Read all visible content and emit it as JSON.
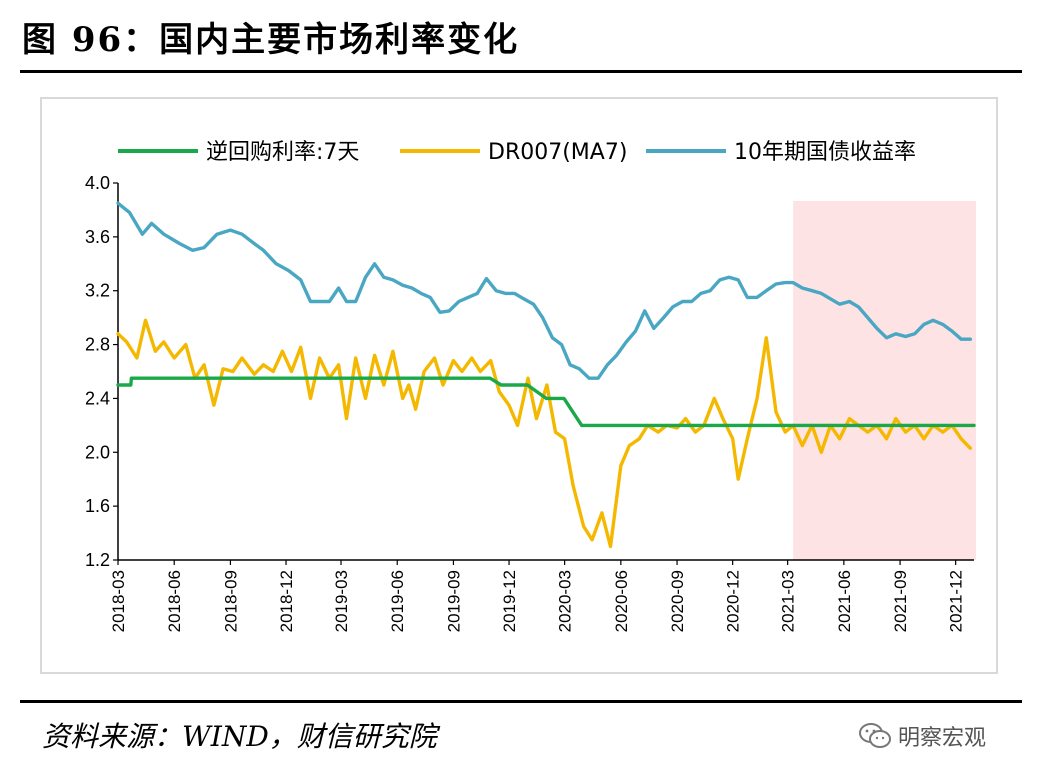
{
  "figure": {
    "title": "图 96：国内主要市场利率变化",
    "source": "资料来源：WIND，财信研究院",
    "watermark": "明察宏观",
    "watermark_icon": "wechat-icon"
  },
  "chart_data": {
    "type": "line",
    "title": "",
    "xlabel": "",
    "ylabel": "",
    "ylim": [
      1.2,
      4.0
    ],
    "yticks": [
      "4.0",
      "3.6",
      "3.2",
      "2.8",
      "2.4",
      "2.0",
      "1.6",
      "1.2"
    ],
    "xticks": [
      "2018-03",
      "2018-06",
      "2018-09",
      "2018-12",
      "2019-03",
      "2019-06",
      "2019-09",
      "2019-12",
      "2020-03",
      "2020-06",
      "2020-09",
      "2020-12",
      "2021-03",
      "2021-06",
      "2021-09",
      "2021-12"
    ],
    "xrange": [
      "2018-03-01",
      "2021-12-31"
    ],
    "legend_position": "top",
    "highlight": {
      "x_start": "2021-03-10",
      "x_end": "2021-12-31",
      "color": "#fde3e3"
    },
    "series": [
      {
        "name": "逆回购利率:7天",
        "color": "#1aa84a",
        "points": [
          [
            "2018-03-01",
            2.5
          ],
          [
            "2018-03-22",
            2.5
          ],
          [
            "2018-03-23",
            2.55
          ],
          [
            "2019-10-31",
            2.55
          ],
          [
            "2019-11-18",
            2.5
          ],
          [
            "2019-12-31",
            2.5
          ],
          [
            "2020-01-31",
            2.4
          ],
          [
            "2020-02-29",
            2.4
          ],
          [
            "2020-03-29",
            2.2
          ],
          [
            "2021-12-31",
            2.2
          ]
        ]
      },
      {
        "name": "DR007(MA7)",
        "color": "#f5b800",
        "points": [
          [
            "2018-03-01",
            2.88
          ],
          [
            "2018-03-15",
            2.82
          ],
          [
            "2018-04-01",
            2.7
          ],
          [
            "2018-04-15",
            2.98
          ],
          [
            "2018-05-01",
            2.75
          ],
          [
            "2018-05-15",
            2.82
          ],
          [
            "2018-06-01",
            2.7
          ],
          [
            "2018-06-20",
            2.8
          ],
          [
            "2018-07-05",
            2.55
          ],
          [
            "2018-07-20",
            2.65
          ],
          [
            "2018-08-05",
            2.35
          ],
          [
            "2018-08-20",
            2.62
          ],
          [
            "2018-09-05",
            2.6
          ],
          [
            "2018-09-20",
            2.7
          ],
          [
            "2018-10-10",
            2.58
          ],
          [
            "2018-10-25",
            2.65
          ],
          [
            "2018-11-10",
            2.6
          ],
          [
            "2018-11-25",
            2.75
          ],
          [
            "2018-12-10",
            2.6
          ],
          [
            "2018-12-25",
            2.78
          ],
          [
            "2019-01-10",
            2.4
          ],
          [
            "2019-01-25",
            2.7
          ],
          [
            "2019-02-10",
            2.55
          ],
          [
            "2019-02-25",
            2.65
          ],
          [
            "2019-03-10",
            2.25
          ],
          [
            "2019-03-25",
            2.7
          ],
          [
            "2019-04-10",
            2.4
          ],
          [
            "2019-04-25",
            2.72
          ],
          [
            "2019-05-10",
            2.5
          ],
          [
            "2019-05-25",
            2.75
          ],
          [
            "2019-06-10",
            2.4
          ],
          [
            "2019-06-20",
            2.5
          ],
          [
            "2019-07-01",
            2.32
          ],
          [
            "2019-07-15",
            2.6
          ],
          [
            "2019-08-01",
            2.7
          ],
          [
            "2019-08-15",
            2.5
          ],
          [
            "2019-09-01",
            2.68
          ],
          [
            "2019-09-15",
            2.6
          ],
          [
            "2019-10-01",
            2.7
          ],
          [
            "2019-10-15",
            2.6
          ],
          [
            "2019-11-01",
            2.68
          ],
          [
            "2019-11-15",
            2.45
          ],
          [
            "2019-12-01",
            2.35
          ],
          [
            "2019-12-15",
            2.2
          ],
          [
            "2020-01-01",
            2.55
          ],
          [
            "2020-01-15",
            2.25
          ],
          [
            "2020-02-01",
            2.5
          ],
          [
            "2020-02-15",
            2.15
          ],
          [
            "2020-03-01",
            2.1
          ],
          [
            "2020-03-15",
            1.75
          ],
          [
            "2020-04-01",
            1.45
          ],
          [
            "2020-04-15",
            1.35
          ],
          [
            "2020-05-01",
            1.55
          ],
          [
            "2020-05-15",
            1.3
          ],
          [
            "2020-06-01",
            1.9
          ],
          [
            "2020-06-15",
            2.05
          ],
          [
            "2020-07-01",
            2.1
          ],
          [
            "2020-07-15",
            2.2
          ],
          [
            "2020-08-01",
            2.15
          ],
          [
            "2020-08-15",
            2.2
          ],
          [
            "2020-09-01",
            2.18
          ],
          [
            "2020-09-15",
            2.25
          ],
          [
            "2020-10-01",
            2.15
          ],
          [
            "2020-10-15",
            2.2
          ],
          [
            "2020-11-01",
            2.4
          ],
          [
            "2020-11-15",
            2.25
          ],
          [
            "2020-12-01",
            2.1
          ],
          [
            "2020-12-10",
            1.8
          ],
          [
            "2020-12-25",
            2.1
          ],
          [
            "2021-01-10",
            2.4
          ],
          [
            "2021-01-25",
            2.85
          ],
          [
            "2021-02-10",
            2.3
          ],
          [
            "2021-02-25",
            2.15
          ],
          [
            "2021-03-10",
            2.2
          ],
          [
            "2021-03-25",
            2.05
          ],
          [
            "2021-04-10",
            2.2
          ],
          [
            "2021-04-25",
            2.0
          ],
          [
            "2021-05-10",
            2.2
          ],
          [
            "2021-05-25",
            2.1
          ],
          [
            "2021-06-10",
            2.25
          ],
          [
            "2021-06-25",
            2.2
          ],
          [
            "2021-07-10",
            2.15
          ],
          [
            "2021-07-25",
            2.2
          ],
          [
            "2021-08-10",
            2.1
          ],
          [
            "2021-08-25",
            2.25
          ],
          [
            "2021-09-10",
            2.15
          ],
          [
            "2021-09-25",
            2.2
          ],
          [
            "2021-10-10",
            2.1
          ],
          [
            "2021-10-25",
            2.2
          ],
          [
            "2021-11-10",
            2.15
          ],
          [
            "2021-11-25",
            2.2
          ],
          [
            "2021-12-10",
            2.1
          ],
          [
            "2021-12-25",
            2.03
          ]
        ]
      },
      {
        "name": "10年期国债收益率",
        "color": "#4aa7c4",
        "points": [
          [
            "2018-03-01",
            3.85
          ],
          [
            "2018-03-20",
            3.78
          ],
          [
            "2018-04-10",
            3.62
          ],
          [
            "2018-04-25",
            3.7
          ],
          [
            "2018-05-15",
            3.62
          ],
          [
            "2018-06-10",
            3.55
          ],
          [
            "2018-07-01",
            3.5
          ],
          [
            "2018-07-20",
            3.52
          ],
          [
            "2018-08-10",
            3.62
          ],
          [
            "2018-09-01",
            3.65
          ],
          [
            "2018-09-20",
            3.62
          ],
          [
            "2018-10-10",
            3.55
          ],
          [
            "2018-10-25",
            3.5
          ],
          [
            "2018-11-15",
            3.4
          ],
          [
            "2018-12-05",
            3.35
          ],
          [
            "2018-12-25",
            3.28
          ],
          [
            "2019-01-10",
            3.12
          ],
          [
            "2019-01-25",
            3.12
          ],
          [
            "2019-02-10",
            3.12
          ],
          [
            "2019-02-25",
            3.22
          ],
          [
            "2019-03-10",
            3.12
          ],
          [
            "2019-03-25",
            3.12
          ],
          [
            "2019-04-10",
            3.3
          ],
          [
            "2019-04-25",
            3.4
          ],
          [
            "2019-05-10",
            3.3
          ],
          [
            "2019-05-25",
            3.28
          ],
          [
            "2019-06-10",
            3.24
          ],
          [
            "2019-06-25",
            3.22
          ],
          [
            "2019-07-10",
            3.18
          ],
          [
            "2019-07-25",
            3.15
          ],
          [
            "2019-08-10",
            3.04
          ],
          [
            "2019-08-25",
            3.05
          ],
          [
            "2019-09-10",
            3.12
          ],
          [
            "2019-09-25",
            3.15
          ],
          [
            "2019-10-10",
            3.18
          ],
          [
            "2019-10-25",
            3.29
          ],
          [
            "2019-11-10",
            3.2
          ],
          [
            "2019-11-25",
            3.18
          ],
          [
            "2019-12-10",
            3.18
          ],
          [
            "2019-12-25",
            3.14
          ],
          [
            "2020-01-10",
            3.1
          ],
          [
            "2020-01-25",
            3.0
          ],
          [
            "2020-02-10",
            2.85
          ],
          [
            "2020-02-25",
            2.8
          ],
          [
            "2020-03-10",
            2.65
          ],
          [
            "2020-03-25",
            2.62
          ],
          [
            "2020-04-10",
            2.55
          ],
          [
            "2020-04-25",
            2.55
          ],
          [
            "2020-05-10",
            2.65
          ],
          [
            "2020-05-25",
            2.72
          ],
          [
            "2020-06-10",
            2.82
          ],
          [
            "2020-06-25",
            2.9
          ],
          [
            "2020-07-10",
            3.05
          ],
          [
            "2020-07-25",
            2.92
          ],
          [
            "2020-08-10",
            3.0
          ],
          [
            "2020-08-25",
            3.08
          ],
          [
            "2020-09-10",
            3.12
          ],
          [
            "2020-09-25",
            3.12
          ],
          [
            "2020-10-10",
            3.18
          ],
          [
            "2020-10-25",
            3.2
          ],
          [
            "2020-11-10",
            3.28
          ],
          [
            "2020-11-25",
            3.3
          ],
          [
            "2020-12-10",
            3.28
          ],
          [
            "2020-12-25",
            3.15
          ],
          [
            "2021-01-10",
            3.15
          ],
          [
            "2021-01-25",
            3.2
          ],
          [
            "2021-02-10",
            3.25
          ],
          [
            "2021-02-25",
            3.26
          ],
          [
            "2021-03-10",
            3.26
          ],
          [
            "2021-03-25",
            3.22
          ],
          [
            "2021-04-10",
            3.2
          ],
          [
            "2021-04-25",
            3.18
          ],
          [
            "2021-05-10",
            3.14
          ],
          [
            "2021-05-25",
            3.1
          ],
          [
            "2021-06-10",
            3.12
          ],
          [
            "2021-06-25",
            3.08
          ],
          [
            "2021-07-10",
            3.0
          ],
          [
            "2021-07-25",
            2.92
          ],
          [
            "2021-08-10",
            2.85
          ],
          [
            "2021-08-25",
            2.88
          ],
          [
            "2021-09-10",
            2.86
          ],
          [
            "2021-09-25",
            2.88
          ],
          [
            "2021-10-10",
            2.95
          ],
          [
            "2021-10-25",
            2.98
          ],
          [
            "2021-11-10",
            2.95
          ],
          [
            "2021-11-25",
            2.9
          ],
          [
            "2021-12-10",
            2.84
          ],
          [
            "2021-12-25",
            2.84
          ]
        ]
      }
    ]
  }
}
